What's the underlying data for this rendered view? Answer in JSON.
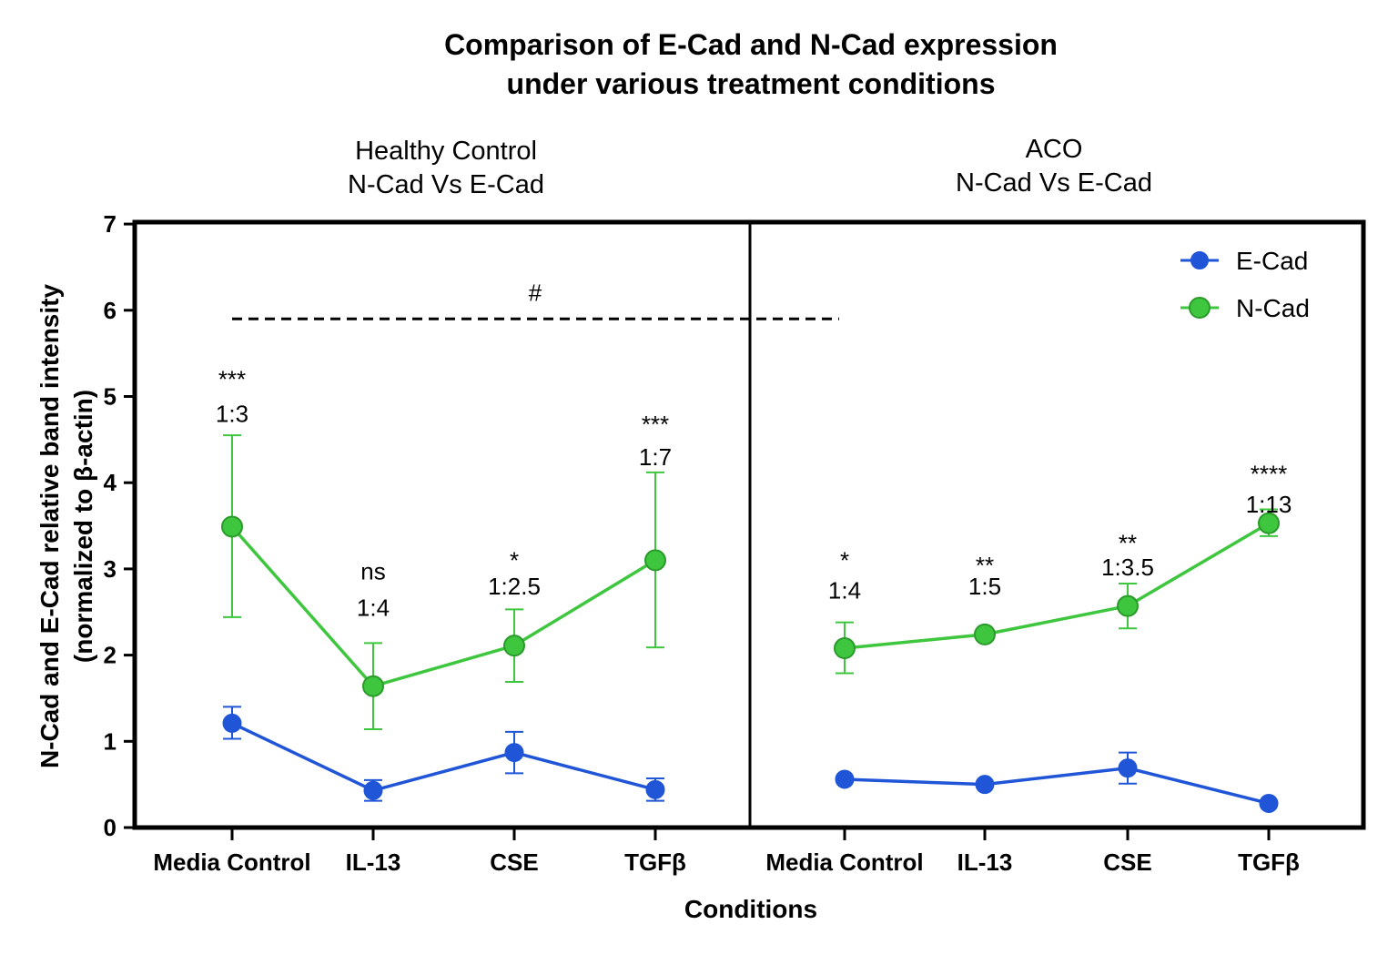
{
  "chart_data": {
    "type": "line",
    "title_lines": [
      "Comparison of E-Cad and N-Cad expression",
      "under various treatment conditions"
    ],
    "xlabel": "Conditions",
    "ylabel_lines": [
      "N-Cad and E-Cad relative band intensity",
      "(normalized to β-actin)"
    ],
    "ylim": [
      0,
      7
    ],
    "yticks": [
      "0",
      "1",
      "2",
      "3",
      "4",
      "5",
      "6",
      "7"
    ],
    "categories": [
      "Media Control",
      "IL-13",
      "CSE",
      "TGFβ"
    ],
    "legend": {
      "position": "top-right",
      "entries": [
        "E-Cad",
        "N-Cad"
      ]
    },
    "colors": {
      "E-Cad": "#1f55d6",
      "N-Cad": "#3ec63e"
    },
    "comparison": {
      "label": "#",
      "y": 5.9
    },
    "panels": [
      {
        "title_lines": [
          "Healthy Control",
          "N-Cad Vs E-Cad"
        ],
        "series": [
          {
            "name": "E-Cad",
            "values": [
              1.21,
              0.43,
              0.87,
              0.44
            ],
            "err_low": [
              1.03,
              0.31,
              0.63,
              0.31
            ],
            "err_high": [
              1.4,
              0.55,
              1.11,
              0.57
            ]
          },
          {
            "name": "N-Cad",
            "values": [
              3.49,
              1.64,
              2.11,
              3.1
            ],
            "err_low": [
              2.44,
              1.14,
              1.69,
              2.09
            ],
            "err_high": [
              4.55,
              2.14,
              2.53,
              4.12
            ]
          }
        ],
        "annotations": [
          {
            "sig": "***",
            "ratio": "1:3",
            "sig_y": 5.2,
            "ratio_y": 4.8
          },
          {
            "sig": "ns",
            "ratio": "1:4",
            "sig_y": 2.97,
            "ratio_y": 2.55
          },
          {
            "sig": "*",
            "ratio": "1:2.5",
            "sig_y": 3.1,
            "ratio_y": 2.8
          },
          {
            "sig": "***",
            "ratio": "1:7",
            "sig_y": 4.68,
            "ratio_y": 4.3
          }
        ]
      },
      {
        "title_lines": [
          "ACO",
          "N-Cad Vs E-Cad"
        ],
        "series": [
          {
            "name": "E-Cad",
            "values": [
              0.56,
              0.5,
              0.69,
              0.28
            ],
            "err_low": [
              0.56,
              0.5,
              0.51,
              0.28
            ],
            "err_high": [
              0.56,
              0.5,
              0.87,
              0.28
            ]
          },
          {
            "name": "N-Cad",
            "values": [
              2.08,
              2.24,
              2.57,
              3.53
            ],
            "err_low": [
              1.79,
              2.24,
              2.31,
              3.38
            ],
            "err_high": [
              2.38,
              2.24,
              2.83,
              3.69
            ]
          }
        ],
        "annotations": [
          {
            "sig": "*",
            "ratio": "1:4",
            "sig_y": 3.1,
            "ratio_y": 2.75
          },
          {
            "sig": "**",
            "ratio": "1:5",
            "sig_y": 3.04,
            "ratio_y": 2.8
          },
          {
            "sig": "**",
            "ratio": "1:3.5",
            "sig_y": 3.3,
            "ratio_y": 3.02
          },
          {
            "sig": "****",
            "ratio": "1:13",
            "sig_y": 4.1,
            "ratio_y": 3.75
          }
        ]
      }
    ]
  }
}
